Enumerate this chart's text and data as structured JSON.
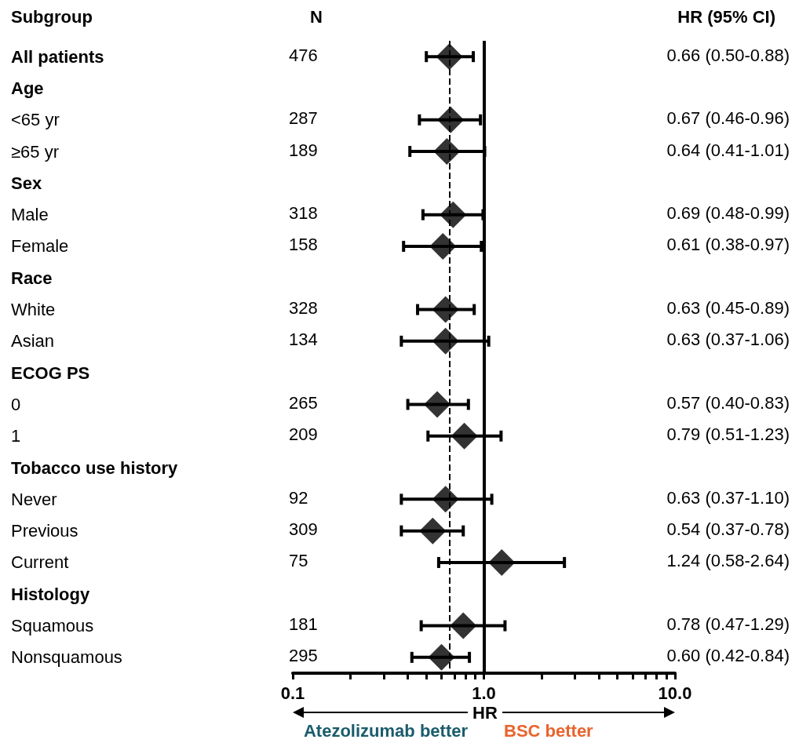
{
  "chart_data": {
    "type": "scatter",
    "orientation": "horizontal",
    "marker": "diamond",
    "log": "x",
    "grid": false,
    "xlabel": "HR",
    "categories": [
      "All patients",
      "Age",
      "<65 yr",
      "≥65 yr",
      "Sex",
      "Male",
      "Female",
      "Race",
      "White",
      "Asian",
      "ECOG PS",
      "0",
      "1",
      "Tobacco use history",
      "Never",
      "Previous",
      "Current",
      "Histology",
      "Squamous",
      "Nonsquamous"
    ],
    "series": [
      {
        "color": "#000000",
        "values": [
          0.66,
          null,
          0.67,
          0.64,
          null,
          0.69,
          0.61,
          null,
          0.63,
          0.63,
          null,
          0.57,
          0.79,
          null,
          0.63,
          0.54,
          1.24,
          null,
          0.78,
          0.6
        ],
        "errors": [
          [
            0.5,
            0.88
          ],
          null,
          [
            0.46,
            0.96
          ],
          [
            0.41,
            1.01
          ],
          null,
          [
            0.48,
            0.99
          ],
          [
            0.38,
            0.97
          ],
          null,
          [
            0.45,
            0.89
          ],
          [
            0.37,
            1.06
          ],
          null,
          [
            0.4,
            0.83
          ],
          [
            0.51,
            1.23
          ],
          null,
          [
            0.37,
            1.1
          ],
          [
            0.37,
            0.78
          ],
          [
            0.58,
            2.64
          ],
          null,
          [
            0.47,
            1.29
          ],
          [
            0.42,
            0.84
          ]
        ],
        "value_labels": [
          "0.66 (0.50-0.88)",
          null,
          "0.67 (0.46-0.96)",
          "0.64 (0.41-1.01)",
          null,
          "0.69 (0.48-0.99)",
          "0.61 (0.38-0.97)",
          null,
          "0.63 (0.45-0.89)",
          "0.63 (0.37-1.06)",
          null,
          "0.57 (0.40-0.83)",
          "0.79 (0.51-1.23)",
          null,
          "0.63 (0.37-1.10)",
          "0.54 (0.37-0.78)",
          "1.24 (0.58-2.64)",
          null,
          "0.78 (0.47-1.29)",
          "0.60 (0.42-0.84)"
        ]
      }
    ],
    "xlim": [
      0.1,
      10
    ],
    "xticks": [
      {
        "value": 0.1,
        "label": "0.1"
      },
      {
        "value": 0.2,
        "label": null
      },
      {
        "value": 0.3,
        "label": null
      },
      {
        "value": 0.4,
        "label": null
      },
      {
        "value": 0.5,
        "label": null
      },
      {
        "value": 0.6,
        "label": null
      },
      {
        "value": 0.7,
        "label": null
      },
      {
        "value": 0.8,
        "label": null
      },
      {
        "value": 0.9,
        "label": null
      },
      {
        "value": 1,
        "label": "1.0"
      },
      {
        "value": 2,
        "label": null
      },
      {
        "value": 3,
        "label": null
      },
      {
        "value": 4,
        "label": null
      },
      {
        "value": 5,
        "label": null
      },
      {
        "value": 6,
        "label": null
      },
      {
        "value": 7,
        "label": null
      },
      {
        "value": 8,
        "label": null
      },
      {
        "value": 9,
        "label": null
      },
      {
        "value": 10,
        "label": "10.0"
      }
    ],
    "ref_lines": [
      {
        "axis": "x",
        "value": 1,
        "line_style": "solid"
      },
      {
        "axis": "x",
        "value": 0.66,
        "line_style": "dashed"
      }
    ],
    "annotations": [
      "Subgroup",
      "N",
      "HR (95% CI)",
      "Atezolizumab better",
      "BSC better",
      "476",
      "287",
      "189",
      "318",
      "158",
      "328",
      "134",
      "265",
      "209",
      "92",
      "309",
      "75",
      "181",
      "295"
    ]
  }
}
